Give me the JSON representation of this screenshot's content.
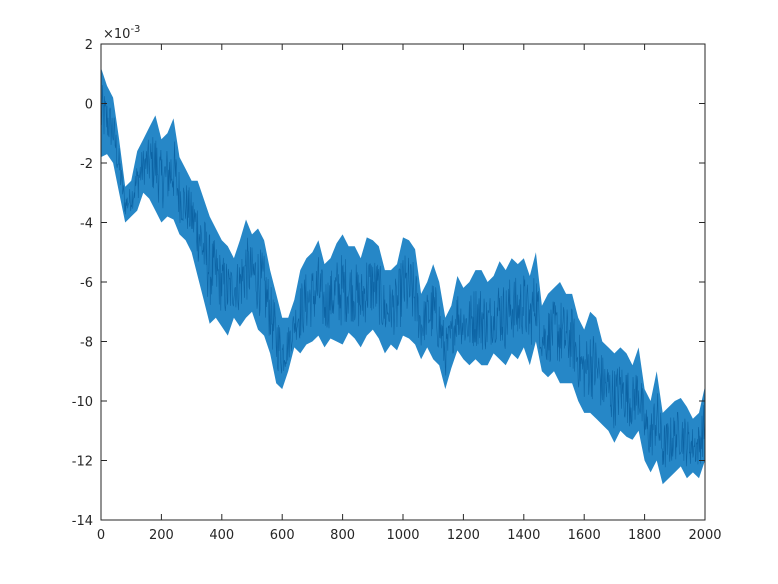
{
  "chart_data": {
    "type": "line",
    "title": "",
    "xlabel": "",
    "ylabel": "",
    "xlim": [
      0,
      2000
    ],
    "ylim": [
      -14,
      2
    ],
    "y_exponent_label": "×10",
    "y_exponent_power": "-3",
    "xticks": [
      0,
      200,
      400,
      600,
      800,
      1000,
      1200,
      1400,
      1600,
      1800,
      2000
    ],
    "xtick_labels": [
      "0",
      "200",
      "400",
      "600",
      "800",
      "1000",
      "1200",
      "1400",
      "1600",
      "1800",
      "2000"
    ],
    "yticks": [
      2,
      0,
      -2,
      -4,
      -6,
      -8,
      -10,
      -12,
      -14
    ],
    "ytick_labels": [
      "2",
      "0",
      "-2",
      "-4",
      "-6",
      "-8",
      "-10",
      "-12",
      "-14"
    ],
    "grid": false,
    "legend": "none",
    "series": [
      {
        "color": "#0072BD",
        "x": [
          0,
          20,
          40,
          60,
          80,
          100,
          120,
          140,
          160,
          180,
          200,
          220,
          240,
          260,
          280,
          300,
          320,
          340,
          360,
          380,
          400,
          420,
          440,
          460,
          480,
          500,
          520,
          540,
          560,
          580,
          600,
          620,
          640,
          660,
          680,
          700,
          720,
          740,
          760,
          780,
          800,
          820,
          840,
          860,
          880,
          900,
          920,
          940,
          960,
          980,
          1000,
          1020,
          1040,
          1060,
          1080,
          1100,
          1120,
          1140,
          1160,
          1180,
          1200,
          1220,
          1240,
          1260,
          1280,
          1300,
          1320,
          1340,
          1360,
          1380,
          1400,
          1420,
          1440,
          1460,
          1480,
          1500,
          1520,
          1540,
          1560,
          1580,
          1600,
          1620,
          1640,
          1660,
          1680,
          1700,
          1720,
          1740,
          1760,
          1780,
          1800,
          1820,
          1840,
          1860,
          1880,
          1900,
          1920,
          1940,
          1960,
          1980,
          2000
        ],
        "upper": [
          1.2,
          0.6,
          0.2,
          -1.2,
          -2.8,
          -2.6,
          -1.6,
          -1.2,
          -0.8,
          -0.4,
          -1.2,
          -1.0,
          -0.5,
          -1.8,
          -2.2,
          -2.6,
          -2.6,
          -3.2,
          -3.8,
          -4.2,
          -4.6,
          -4.8,
          -5.2,
          -4.6,
          -3.9,
          -4.4,
          -4.2,
          -4.6,
          -5.6,
          -6.4,
          -7.2,
          -7.2,
          -6.6,
          -5.6,
          -5.2,
          -5.0,
          -4.6,
          -5.4,
          -5.2,
          -4.7,
          -4.4,
          -4.8,
          -4.8,
          -5.2,
          -4.5,
          -4.6,
          -4.8,
          -5.6,
          -5.6,
          -5.4,
          -4.5,
          -4.6,
          -4.9,
          -6.4,
          -6.0,
          -5.4,
          -6.0,
          -7.2,
          -6.8,
          -5.8,
          -6.2,
          -6.0,
          -5.6,
          -5.6,
          -6.0,
          -5.8,
          -5.3,
          -5.6,
          -5.2,
          -5.4,
          -5.2,
          -5.8,
          -5.0,
          -6.8,
          -6.4,
          -6.2,
          -6.0,
          -6.4,
          -6.4,
          -7.2,
          -7.6,
          -7.0,
          -7.2,
          -8.0,
          -8.2,
          -8.4,
          -8.2,
          -8.4,
          -8.8,
          -8.2,
          -9.6,
          -10.0,
          -9.0,
          -10.4,
          -10.2,
          -10.0,
          -9.9,
          -10.2,
          -10.6,
          -10.4,
          -9.5
        ],
        "lower": [
          -1.8,
          -1.7,
          -2.0,
          -3.0,
          -4.0,
          -3.8,
          -3.6,
          -3.0,
          -3.2,
          -3.6,
          -4.0,
          -3.8,
          -3.9,
          -4.4,
          -4.6,
          -5.0,
          -5.8,
          -6.6,
          -7.4,
          -7.2,
          -7.5,
          -7.8,
          -7.2,
          -7.5,
          -7.2,
          -7.0,
          -7.6,
          -7.8,
          -8.4,
          -9.4,
          -9.6,
          -9.0,
          -8.2,
          -8.4,
          -8.1,
          -8.0,
          -7.8,
          -8.2,
          -7.9,
          -8.0,
          -8.1,
          -7.7,
          -7.9,
          -8.2,
          -7.8,
          -7.6,
          -7.9,
          -8.4,
          -8.1,
          -8.3,
          -7.8,
          -7.9,
          -8.1,
          -8.6,
          -8.2,
          -8.6,
          -8.8,
          -9.6,
          -8.9,
          -8.3,
          -8.6,
          -8.8,
          -8.6,
          -8.8,
          -8.8,
          -8.4,
          -8.6,
          -8.8,
          -8.4,
          -8.6,
          -8.2,
          -8.8,
          -8.0,
          -9.0,
          -9.2,
          -9.0,
          -9.4,
          -9.4,
          -9.4,
          -10.0,
          -10.4,
          -10.4,
          -10.6,
          -10.8,
          -11.0,
          -11.4,
          -11.0,
          -11.2,
          -11.3,
          -11.0,
          -12.0,
          -12.4,
          -12.0,
          -12.8,
          -12.6,
          -12.4,
          -12.2,
          -12.6,
          -12.4,
          -12.6,
          -12.0
        ]
      }
    ]
  }
}
